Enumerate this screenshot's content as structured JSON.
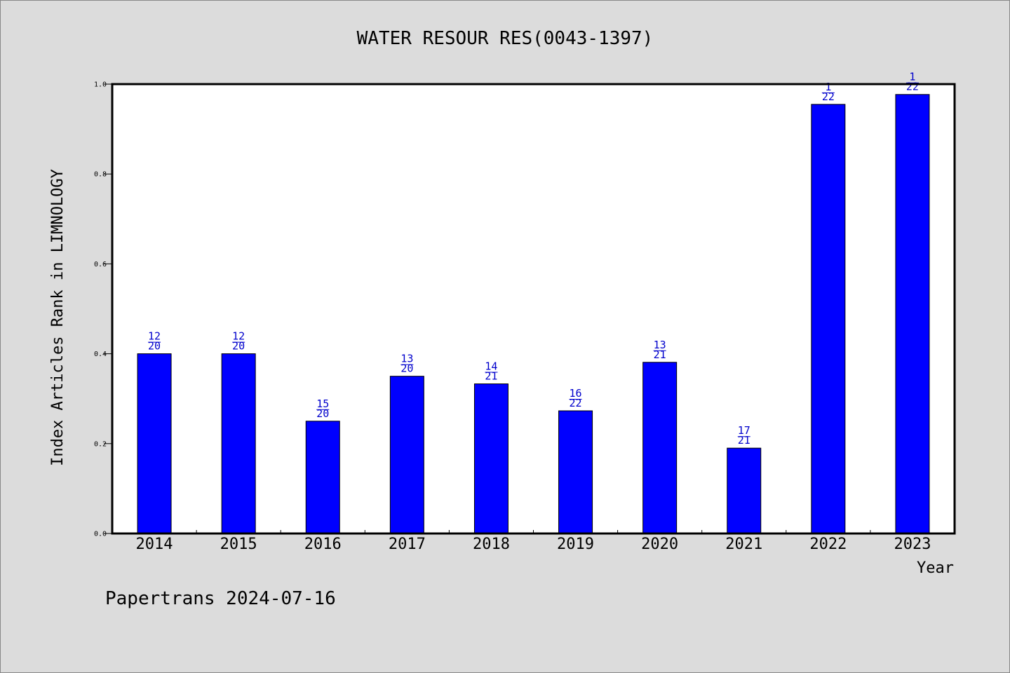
{
  "chart_data": {
    "type": "bar",
    "title": "WATER RESOUR RES(0043-1397)",
    "xlabel": "Year",
    "ylabel": "Index Articles Rank in LIMNOLOGY",
    "ylim": [
      0.0,
      1.0
    ],
    "yticks": [
      "0.0",
      "0.2",
      "0.4",
      "0.6",
      "0.8",
      "1.0"
    ],
    "ytick_values": [
      0.0,
      0.2,
      0.4,
      0.6,
      0.8,
      1.0
    ],
    "categories": [
      "2014",
      "2015",
      "2016",
      "2017",
      "2018",
      "2019",
      "2020",
      "2021",
      "2022",
      "2023"
    ],
    "values": [
      0.4,
      0.4,
      0.25,
      0.35,
      0.333,
      0.273,
      0.381,
      0.19,
      0.955,
      0.977
    ],
    "ranks": [
      "12",
      "12",
      "15",
      "13",
      "14",
      "16",
      "13",
      "17",
      "1",
      "1"
    ],
    "totals": [
      "20",
      "20",
      "20",
      "20",
      "21",
      "22",
      "21",
      "21",
      "22",
      "22"
    ],
    "bar_color": "#0000ff",
    "label_color": "#0000cc",
    "grid": false,
    "legend": "none"
  },
  "footer": "Papertrans 2024-07-16"
}
